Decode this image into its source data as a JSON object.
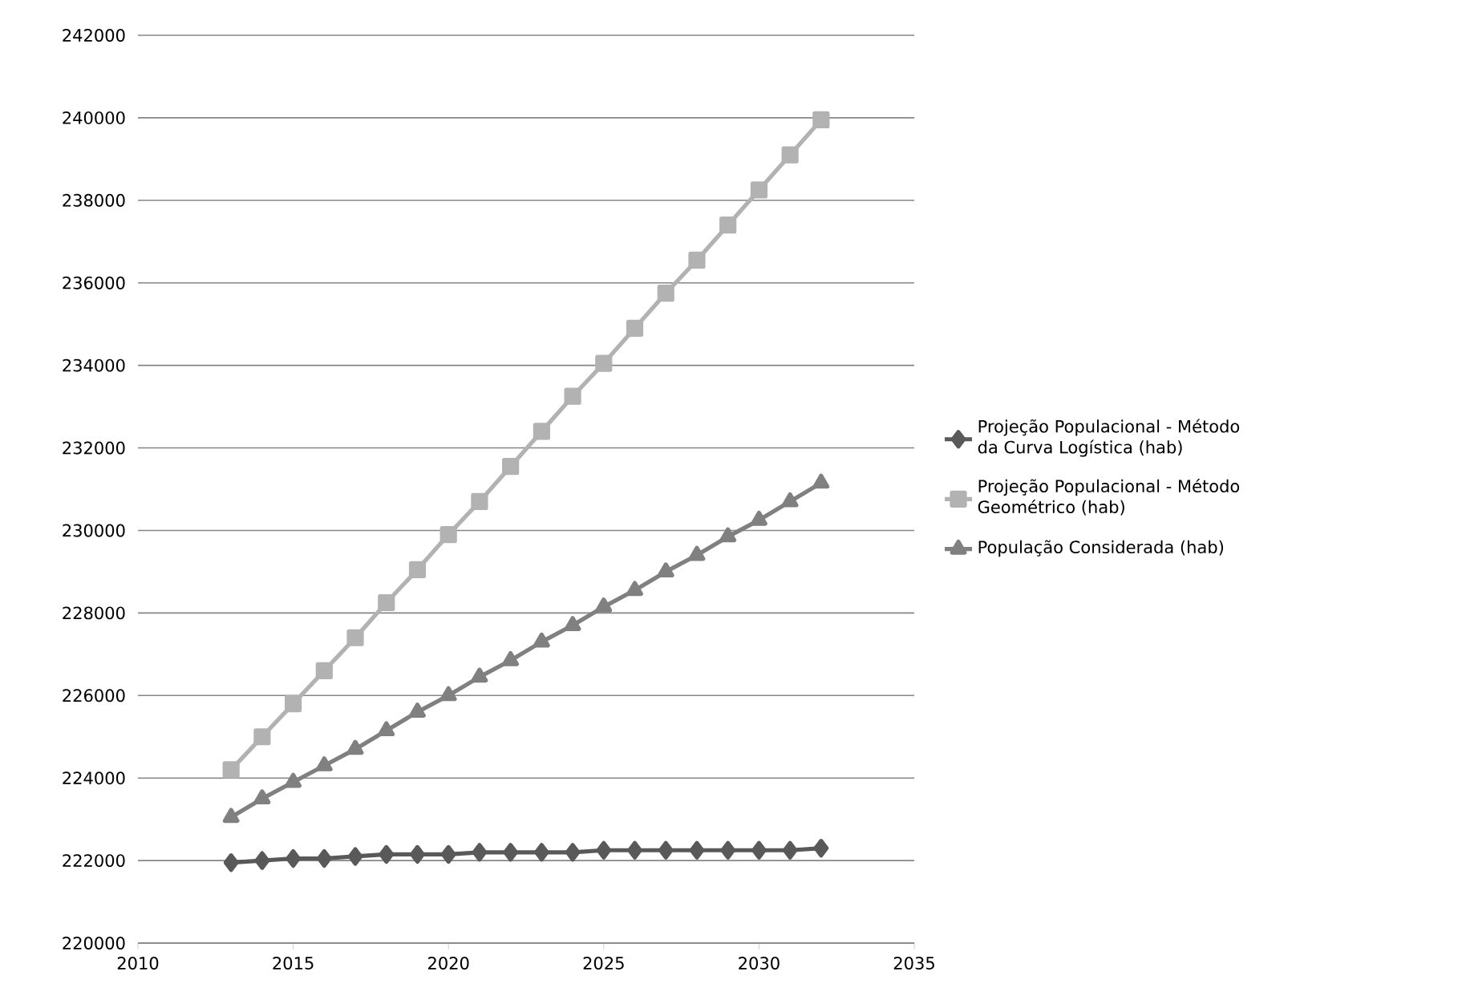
{
  "chart_data": {
    "type": "line",
    "x": [
      2013,
      2014,
      2015,
      2016,
      2017,
      2018,
      2019,
      2020,
      2021,
      2022,
      2023,
      2024,
      2025,
      2026,
      2027,
      2028,
      2029,
      2030,
      2031,
      2032
    ],
    "series": [
      {
        "name": "Projeção Populacional - Método da Curva Logística (hab)",
        "color": "#595959",
        "marker": "diamond",
        "values": [
          221950,
          222000,
          222050,
          222050,
          222100,
          222150,
          222150,
          222150,
          222200,
          222200,
          222200,
          222200,
          222250,
          222250,
          222250,
          222250,
          222250,
          222250,
          222250,
          222300
        ]
      },
      {
        "name": "Projeção Populacional - Método Geométrico (hab)",
        "color": "#b2b2b2",
        "marker": "square",
        "values": [
          224200,
          225000,
          225800,
          226600,
          227400,
          228250,
          229050,
          229900,
          230700,
          231550,
          232400,
          233250,
          234050,
          234900,
          235750,
          236550,
          237400,
          238250,
          239100,
          239950
        ]
      },
      {
        "name": "População Considerada (hab)",
        "color": "#808080",
        "marker": "triangle",
        "values": [
          223050,
          223500,
          223900,
          224300,
          224700,
          225150,
          225600,
          226000,
          226450,
          226850,
          227300,
          227700,
          228150,
          228550,
          229000,
          229400,
          229850,
          230250,
          230700,
          231150
        ]
      }
    ],
    "xlim": [
      2010,
      2035
    ],
    "xticks": [
      2010,
      2015,
      2020,
      2025,
      2030,
      2035
    ],
    "ylim": [
      220000,
      242000
    ],
    "yticks": [
      220000,
      222000,
      224000,
      226000,
      228000,
      230000,
      232000,
      234000,
      236000,
      238000,
      240000,
      242000
    ],
    "grid": "y",
    "legend": "right",
    "line_style": "solid"
  }
}
